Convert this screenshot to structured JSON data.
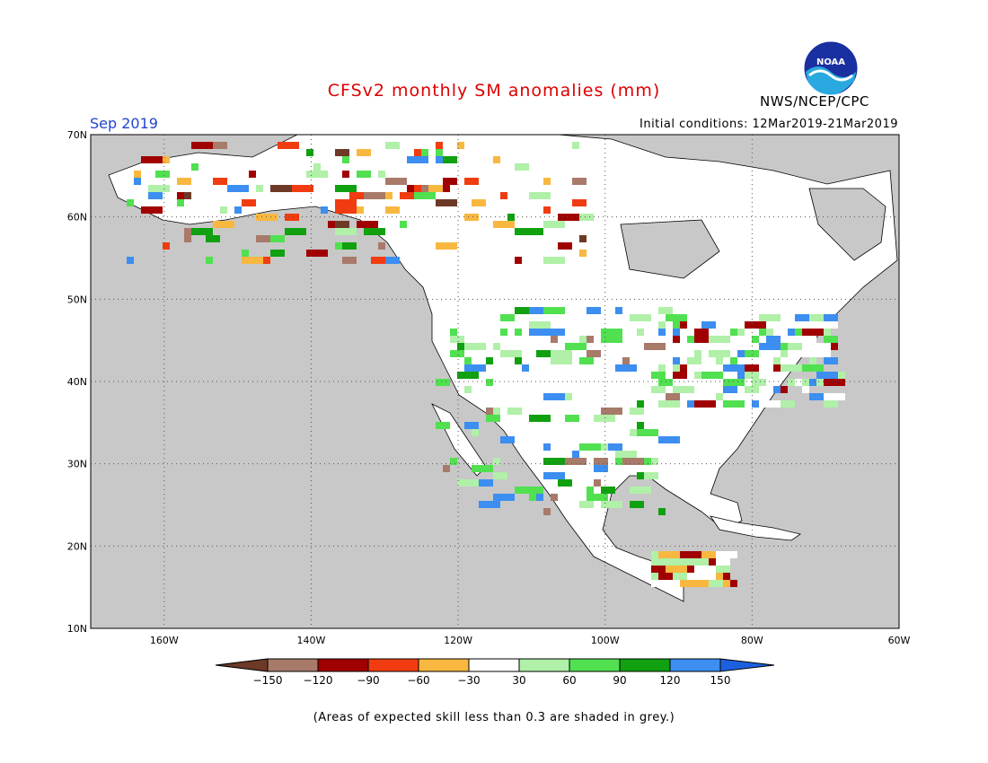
{
  "title": "CFSv2 monthly SM anomalies (mm)",
  "period": "Sep 2019",
  "initial_conditions": "Initial conditions: 12Mar2019-21Mar2019",
  "organization": "NWS/NCEP/CPC",
  "logo_text": "NOAA",
  "footnote": "(Areas of expected skill less than 0.3 are shaded in grey.)",
  "map": {
    "lon_range": [
      -170,
      -60
    ],
    "lat_range": [
      10,
      70
    ],
    "lat_labels": [
      "70N",
      "60N",
      "50N",
      "40N",
      "30N",
      "20N",
      "10N"
    ],
    "lon_labels": [
      "160W",
      "140W",
      "120W",
      "100W",
      "80W",
      "60W"
    ],
    "grid": "dotted",
    "background_color": "#c8c8c8"
  },
  "legend": {
    "tick_labels": [
      "−150",
      "−120",
      "−90",
      "−60",
      "−30",
      "30",
      "60",
      "90",
      "120",
      "150"
    ],
    "colors": [
      "#6e3a28",
      "#a87a6a",
      "#a00000",
      "#f03c10",
      "#f8b840",
      "#ffffff",
      "#b0f0a8",
      "#50e050",
      "#10a010",
      "#3c8ef0",
      "#1c60e0"
    ]
  }
}
